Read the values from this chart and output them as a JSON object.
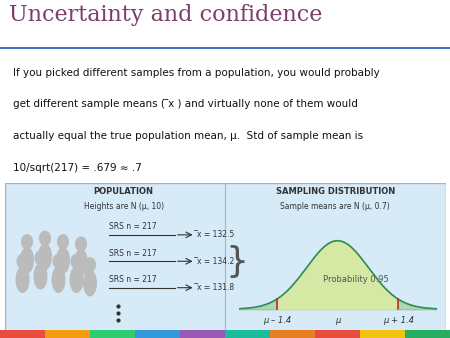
{
  "title": "Uncertainty and confidence",
  "title_color": "#7B3F6E",
  "title_fontsize": 16,
  "background_color": "#ffffff",
  "panel_bg": "#d6eaf8",
  "pop_label": "POPULATION",
  "pop_sublabel": "Heights are N (μ, 10)",
  "samp_label": "SAMPLING DISTRIBUTION",
  "samp_sublabel": "Sample means are N (μ, 0.7)",
  "srs_labels": [
    "SRS n = 217",
    "SRS n = 217",
    "SRS n = 217"
  ],
  "xbar_labels": [
    "̅x = 132.5",
    "̅x = 134.2",
    "̅x = 131.8"
  ],
  "prob_label": "Probability 0.95",
  "x_labels": [
    "μ – 1.4",
    "μ",
    "μ + 1.4"
  ],
  "header_line_color": "#4472C4",
  "panel_border_color": "#a0b4c8",
  "curve_color": "#2e8b57",
  "fill_color": "#d5e8a0",
  "shade_color": "#a8d4a8",
  "marker_color": "#b03030"
}
